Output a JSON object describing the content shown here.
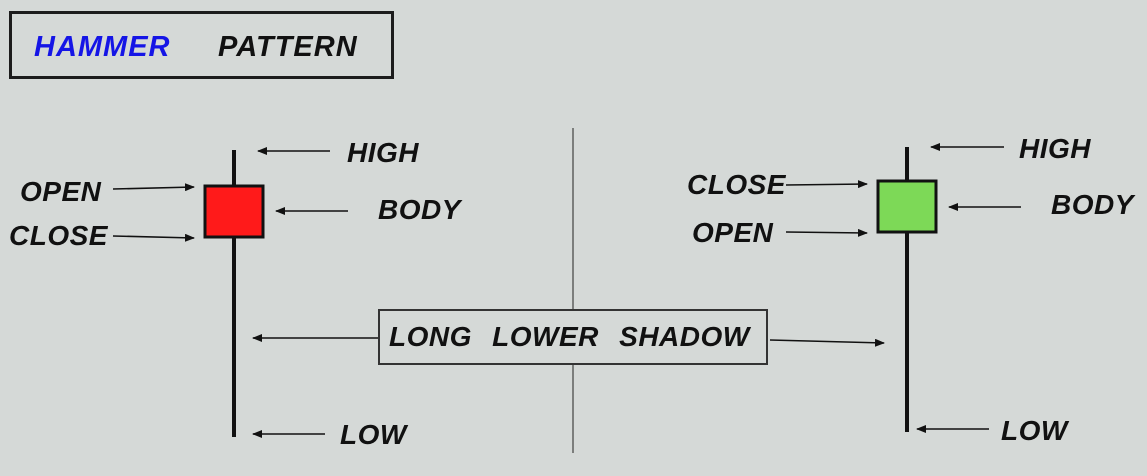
{
  "title": {
    "word1": "HAMMER",
    "word2": "PATTERN"
  },
  "colors": {
    "background": "#d5d9d7",
    "title_word1": "#1515e6",
    "bearish_body": "#ff1a1a",
    "bullish_body": "#7dd957"
  },
  "left_candle": {
    "high": "HIGH",
    "open": "OPEN",
    "close": "CLOSE",
    "body": "BODY",
    "low": "LOW"
  },
  "right_candle": {
    "high": "HIGH",
    "close": "CLOSE",
    "open": "OPEN",
    "body": "BODY",
    "low": "LOW"
  },
  "shadow_label": "LONG LOWER SHADOW"
}
